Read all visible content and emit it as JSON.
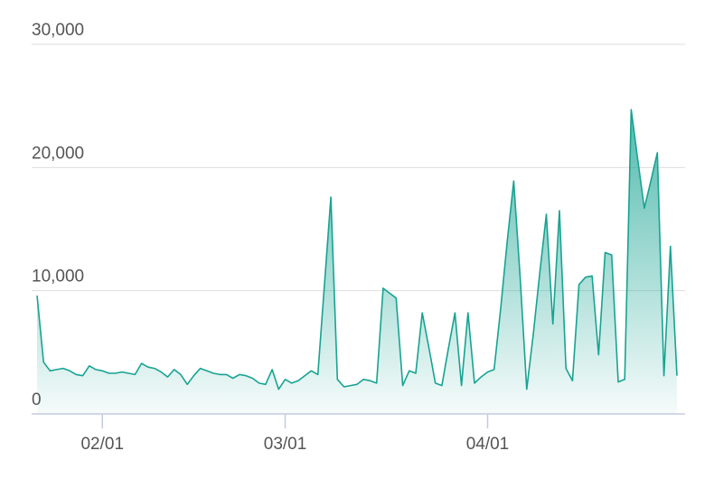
{
  "chart_data": {
    "type": "area",
    "categories": [
      null,
      null,
      null,
      null,
      null,
      null,
      null,
      null,
      null,
      null,
      "02/01",
      null,
      null,
      null,
      null,
      null,
      null,
      null,
      null,
      null,
      null,
      null,
      null,
      null,
      null,
      null,
      null,
      null,
      null,
      null,
      null,
      null,
      null,
      null,
      null,
      null,
      null,
      null,
      "03/01",
      null,
      null,
      null,
      null,
      null,
      null,
      null,
      null,
      null,
      null,
      null,
      null,
      null,
      null,
      null,
      null,
      null,
      null,
      null,
      null,
      null,
      null,
      null,
      null,
      null,
      null,
      null,
      null,
      null,
      null,
      "04/01",
      null,
      null,
      null,
      null,
      null,
      null,
      null,
      null,
      null,
      null,
      null,
      null,
      null,
      null,
      null,
      null,
      null,
      null,
      null,
      null,
      null,
      null,
      null,
      null,
      null,
      null,
      null,
      null,
      null
    ],
    "series": [
      {
        "color": "#17a392",
        "values": [
          9600,
          4200,
          3500,
          3600,
          3700,
          3500,
          3200,
          3100,
          3900,
          3600,
          3500,
          3300,
          3300,
          3400,
          3300,
          3200,
          4100,
          3800,
          3700,
          3400,
          3000,
          3600,
          3200,
          2400,
          3100,
          3700,
          3500,
          3300,
          3200,
          3200,
          2900,
          3200,
          3100,
          2900,
          2500,
          2400,
          3600,
          2000,
          2800,
          2500,
          2700,
          3100,
          3500,
          3200,
          10400,
          17600,
          2800,
          2200,
          2300,
          2400,
          2800,
          2700,
          2500,
          10200,
          9800,
          9400,
          2300,
          3500,
          3300,
          8200,
          5400,
          2500,
          2300,
          5300,
          8200,
          2300,
          8200,
          2500,
          3000,
          3400,
          3600,
          8500,
          14000,
          18900,
          11000,
          2000,
          6500,
          11500,
          16200,
          7300,
          16500,
          3700,
          2700,
          10500,
          11100,
          11200,
          4800,
          13100,
          12900,
          2600,
          2800,
          24700,
          20600,
          16700,
          18900,
          21200,
          3100,
          13600,
          3100
        ]
      }
    ],
    "ylim": [
      0,
      30000
    ],
    "yticks": [
      0,
      {
        "value": 10000,
        "label": "10,000"
      },
      {
        "value": 20000,
        "label": "20,000"
      },
      {
        "value": 30000,
        "label": "30,000"
      }
    ],
    "grid": true
  }
}
